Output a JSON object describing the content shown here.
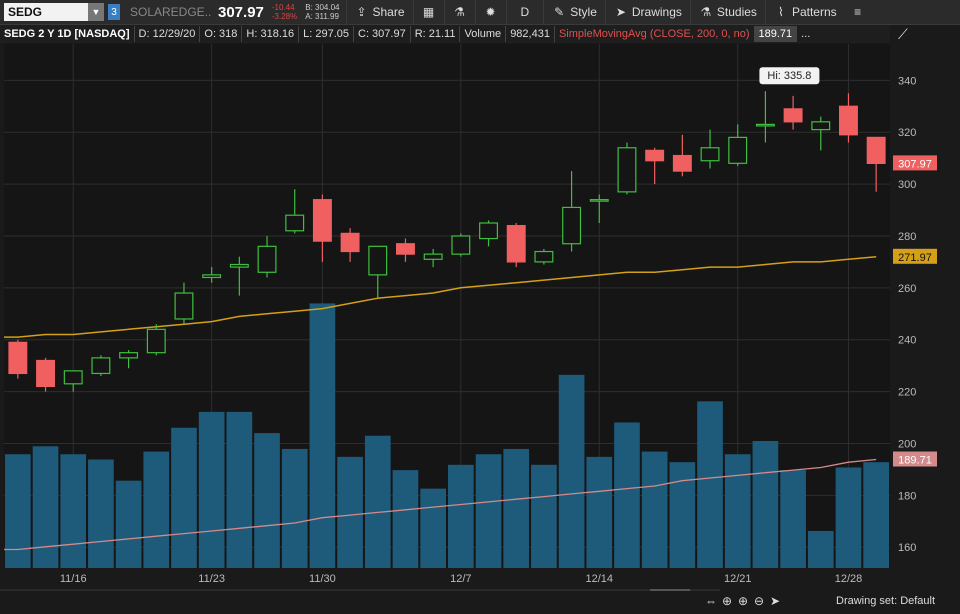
{
  "toolbar": {
    "symbol": "SEDG",
    "company": "SOLAREDGE...",
    "last": "307.97",
    "change_abs": "-10.44",
    "change_pct": "-3.28%",
    "bid": "B: 304.04",
    "ask": "A: 311.99",
    "share_label": "Share",
    "aggregation": "D",
    "style_label": "Style",
    "drawings_label": "Drawings",
    "studies_label": "Studies",
    "patterns_label": "Patterns"
  },
  "infobar": {
    "title": "SEDG 2 Y 1D [NASDAQ]",
    "date": "D: 12/29/20",
    "open": "O: 318",
    "high": "H: 318.16",
    "low": "L: 297.05",
    "close": "C: 307.97",
    "range": "R: 21.11",
    "volume_label": "Volume",
    "volume_value": "982,431",
    "sma_label": "SimpleMovingAvg (CLOSE, 200, 0, no)",
    "sma_value": "189.71",
    "more": "..."
  },
  "chart_data": {
    "type": "candlestick",
    "price_axis": [
      340,
      320,
      300,
      280,
      260,
      240,
      220,
      200,
      180,
      160
    ],
    "price_range": [
      152,
      354
    ],
    "x_tick_labels": [
      {
        "label": "11/16",
        "index": 2
      },
      {
        "label": "11/23",
        "index": 7
      },
      {
        "label": "11/30",
        "index": 11
      },
      {
        "label": "12/7",
        "index": 16
      },
      {
        "label": "12/14",
        "index": 21
      },
      {
        "label": "12/21",
        "index": 26
      },
      {
        "label": "12/28",
        "index": 30
      }
    ],
    "candles": [
      {
        "o": 239,
        "h": 240,
        "l": 225,
        "c": 227
      },
      {
        "o": 232,
        "h": 233,
        "l": 220,
        "c": 222
      },
      {
        "o": 223,
        "h": 228,
        "l": 220,
        "c": 228
      },
      {
        "o": 227,
        "h": 234,
        "l": 226,
        "c": 233
      },
      {
        "o": 233,
        "h": 236,
        "l": 229,
        "c": 235
      },
      {
        "o": 235,
        "h": 246,
        "l": 234,
        "c": 244
      },
      {
        "o": 248,
        "h": 262,
        "l": 246,
        "c": 258
      },
      {
        "o": 264,
        "h": 268,
        "l": 262,
        "c": 265
      },
      {
        "o": 268,
        "h": 272,
        "l": 257,
        "c": 269
      },
      {
        "o": 266,
        "h": 280,
        "l": 264,
        "c": 276
      },
      {
        "o": 282,
        "h": 298,
        "l": 281,
        "c": 288
      },
      {
        "o": 294,
        "h": 296,
        "l": 270,
        "c": 278
      },
      {
        "o": 281,
        "h": 283,
        "l": 270,
        "c": 274
      },
      {
        "o": 265,
        "h": 276,
        "l": 256,
        "c": 276
      },
      {
        "o": 277,
        "h": 279,
        "l": 270,
        "c": 273
      },
      {
        "o": 271,
        "h": 275,
        "l": 268,
        "c": 273
      },
      {
        "o": 273,
        "h": 281,
        "l": 272,
        "c": 280
      },
      {
        "o": 279,
        "h": 286,
        "l": 276,
        "c": 285
      },
      {
        "o": 284,
        "h": 285,
        "l": 268,
        "c": 270
      },
      {
        "o": 270,
        "h": 275,
        "l": 269,
        "c": 274
      },
      {
        "o": 277,
        "h": 305,
        "l": 274,
        "c": 291
      },
      {
        "o": 294,
        "h": 296,
        "l": 285,
        "c": 294
      },
      {
        "o": 297,
        "h": 316,
        "l": 296,
        "c": 314
      },
      {
        "o": 313,
        "h": 314,
        "l": 300,
        "c": 309
      },
      {
        "o": 311,
        "h": 319,
        "l": 303,
        "c": 305
      },
      {
        "o": 309,
        "h": 321,
        "l": 306,
        "c": 314
      },
      {
        "o": 308,
        "h": 323,
        "l": 307,
        "c": 318
      },
      {
        "o": 323,
        "h": 335.8,
        "l": 316,
        "c": 323
      },
      {
        "o": 329,
        "h": 334,
        "l": 321,
        "c": 324
      },
      {
        "o": 321,
        "h": 326,
        "l": 313,
        "c": 324
      },
      {
        "o": 330,
        "h": 335,
        "l": 316,
        "c": 319
      },
      {
        "o": 318,
        "h": 318.16,
        "l": 297.05,
        "c": 307.97
      }
    ],
    "volume_relative": [
      0.43,
      0.46,
      0.43,
      0.41,
      0.33,
      0.44,
      0.53,
      0.59,
      0.59,
      0.51,
      0.45,
      1.0,
      0.42,
      0.5,
      0.37,
      0.3,
      0.39,
      0.43,
      0.45,
      0.39,
      0.73,
      0.42,
      0.55,
      0.44,
      0.4,
      0.63,
      0.43,
      0.48,
      0.37,
      0.14,
      0.38,
      0.4
    ],
    "price_ma": [
      241,
      242,
      242,
      243,
      244,
      245,
      246,
      247,
      249,
      250,
      251,
      252,
      254,
      256,
      257,
      258,
      260,
      261,
      262,
      263,
      264,
      265,
      266,
      266,
      267,
      268,
      268,
      269,
      270,
      270,
      271,
      271.97
    ],
    "volume_ma_relative": [
      0.07,
      0.08,
      0.09,
      0.1,
      0.11,
      0.12,
      0.13,
      0.14,
      0.15,
      0.16,
      0.17,
      0.19,
      0.2,
      0.21,
      0.22,
      0.23,
      0.24,
      0.25,
      0.26,
      0.27,
      0.28,
      0.29,
      0.3,
      0.31,
      0.33,
      0.34,
      0.35,
      0.36,
      0.37,
      0.38,
      0.4,
      0.41
    ],
    "hi_label": "Hi: 335.8",
    "last_price_label": "307.97",
    "ma_price_label": "271.97",
    "volume_ma_label": "189.71",
    "colors": {
      "up": "#3fbf3f",
      "down": "#f06060",
      "volume": "#1e5a7a",
      "ma": "#d4a017",
      "vol_ma": "#d48a8a",
      "grid": "#2e2e2e"
    }
  },
  "bottom": {
    "drawing_set": "Drawing set: Default"
  }
}
